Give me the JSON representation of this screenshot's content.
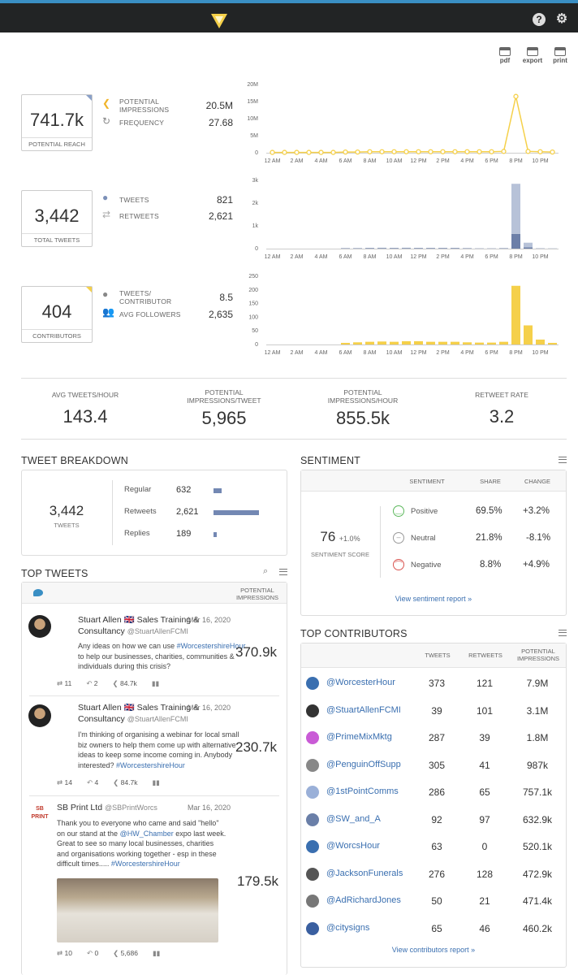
{
  "toolbar": {
    "pdf": "pdf",
    "export": "export",
    "print": "print"
  },
  "reach": {
    "value": "741.7k",
    "label": "POTENTIAL REACH",
    "m1_label": "POTENTIAL IMPRESSIONS",
    "m1_value": "20.5M",
    "m2_label": "FREQUENCY",
    "m2_value": "27.68"
  },
  "tweets": {
    "value": "3,442",
    "label": "TOTAL TWEETS",
    "m1_label": "TWEETS",
    "m1_value": "821",
    "m2_label": "RETWEETS",
    "m2_value": "2,621"
  },
  "contributors": {
    "value": "404",
    "label": "CONTRIBUTORS",
    "m1_label": "TWEETS/ CONTRIBUTOR",
    "m1_value": "8.5",
    "m2_label": "AVG FOLLOWERS",
    "m2_value": "2,635"
  },
  "chart_data": [
    {
      "type": "line",
      "x": [
        "12 AM",
        "1 AM",
        "2 AM",
        "3 AM",
        "4 AM",
        "5 AM",
        "6 AM",
        "7 AM",
        "8 AM",
        "9 AM",
        "10 AM",
        "11 AM",
        "12 PM",
        "1 PM",
        "2 PM",
        "3 PM",
        "4 PM",
        "5 PM",
        "6 PM",
        "7 PM",
        "8 PM",
        "9 PM",
        "10 PM",
        "11 PM"
      ],
      "values": [
        0.1,
        0.1,
        0.1,
        0.1,
        0.1,
        0.1,
        0.2,
        0.2,
        0.3,
        0.3,
        0.3,
        0.3,
        0.3,
        0.3,
        0.3,
        0.3,
        0.3,
        0.3,
        0.3,
        0.4,
        16.5,
        0.4,
        0.3,
        0.2
      ],
      "yticks": [
        "0",
        "5M",
        "10M",
        "15M",
        "20M"
      ],
      "ylim": [
        0,
        20
      ],
      "color": "#f5d04a"
    },
    {
      "type": "bar",
      "x": [
        "12 AM",
        "1 AM",
        "2 AM",
        "3 AM",
        "4 AM",
        "5 AM",
        "6 AM",
        "7 AM",
        "8 AM",
        "9 AM",
        "10 AM",
        "11 AM",
        "12 PM",
        "1 PM",
        "2 PM",
        "3 PM",
        "4 PM",
        "5 PM",
        "6 PM",
        "7 PM",
        "8 PM",
        "9 PM",
        "10 PM",
        "11 PM"
      ],
      "series": [
        {
          "name": "Tweets",
          "values": [
            0,
            0,
            0,
            0,
            0,
            0,
            15,
            15,
            20,
            25,
            20,
            25,
            20,
            20,
            20,
            20,
            15,
            10,
            10,
            15,
            650,
            60,
            10,
            5
          ],
          "color": "#6c7fa8"
        },
        {
          "name": "Retweets",
          "values": [
            0,
            0,
            0,
            0,
            0,
            0,
            10,
            10,
            15,
            15,
            15,
            15,
            15,
            15,
            15,
            15,
            10,
            5,
            5,
            10,
            2200,
            200,
            10,
            10
          ],
          "color": "#b7c2d8"
        }
      ],
      "yticks": [
        "0",
        "1k",
        "2k",
        "3k"
      ],
      "ylim": [
        0,
        3000
      ]
    },
    {
      "type": "bar",
      "x": [
        "12 AM",
        "1 AM",
        "2 AM",
        "3 AM",
        "4 AM",
        "5 AM",
        "6 AM",
        "7 AM",
        "8 AM",
        "9 AM",
        "10 AM",
        "11 AM",
        "12 PM",
        "1 PM",
        "2 PM",
        "3 PM",
        "4 PM",
        "5 PM",
        "6 PM",
        "7 PM",
        "8 PM",
        "9 PM",
        "10 PM",
        "11 PM"
      ],
      "values": [
        0,
        0,
        0,
        0,
        0,
        0,
        6,
        8,
        10,
        11,
        10,
        12,
        12,
        10,
        10,
        10,
        8,
        7,
        7,
        10,
        215,
        70,
        18,
        6
      ],
      "yticks": [
        "0",
        "50",
        "100",
        "150",
        "200",
        "250"
      ],
      "ylim": [
        0,
        250
      ],
      "color": "#f5d04a"
    }
  ],
  "xlabels": [
    "12 AM",
    "2 AM",
    "4 AM",
    "6 AM",
    "8 AM",
    "10 AM",
    "12 PM",
    "2 PM",
    "4 PM",
    "6 PM",
    "8 PM",
    "10 PM"
  ],
  "kpis": [
    {
      "label": "AVG TWEETS/HOUR",
      "value": "143.4"
    },
    {
      "label": "POTENTIAL IMPRESSIONS/TWEET",
      "value": "5,965"
    },
    {
      "label": "POTENTIAL IMPRESSIONS/HOUR",
      "value": "855.5k"
    },
    {
      "label": "RETWEET RATE",
      "value": "3.2"
    }
  ],
  "breakdown": {
    "title": "TWEET BREAKDOWN",
    "total": "3,442",
    "total_label": "TWEETS",
    "rows": [
      {
        "label": "Regular",
        "value": "632",
        "share": 0.18
      },
      {
        "label": "Retweets",
        "value": "2,621",
        "share": 1.0
      },
      {
        "label": "Replies",
        "value": "189",
        "share": 0.07
      }
    ]
  },
  "sentiment": {
    "title": "SENTIMENT",
    "score": "76",
    "change": "+1.0%",
    "score_label": "SENTIMENT SCORE",
    "headers": [
      "SENTIMENT",
      "SHARE",
      "CHANGE"
    ],
    "rows": [
      {
        "label": "Positive",
        "share": "69.5%",
        "change": "+3.2%",
        "color": "#5cb85c"
      },
      {
        "label": "Neutral",
        "share": "21.8%",
        "change": "-8.1%",
        "color": "#999999"
      },
      {
        "label": "Negative",
        "share": "8.8%",
        "change": "+4.9%",
        "color": "#d9534f"
      }
    ],
    "link": "View sentiment report »"
  },
  "top_tweets": {
    "title": "TOP TWEETS",
    "col": "POTENTIAL IMPRESSIONS",
    "items": [
      {
        "name": "Stuart Allen 🇬🇧 Sales Training & Consultancy",
        "handle": "@StuartAllenFCMI",
        "date": "Mar 16, 2020",
        "text_a": "Any ideas on how we can use ",
        "tag_a": "#WorcestershireHour",
        "text_b": " to help our businesses, charities, communities & individuals during this crisis?",
        "tag_b": "",
        "impressions": "370.9k",
        "retweets": "11",
        "replies": "2",
        "reach": "84.7k"
      },
      {
        "name": "Stuart Allen 🇬🇧 Sales Training & Consultancy",
        "handle": "@StuartAllenFCMI",
        "date": "Mar 16, 2020",
        "text_a": "I'm thinking of organising a webinar for local small biz owners to help them come up with alternative ideas to keep some income coming in. Anybody interested? ",
        "tag_a": "#WorcestershireHour",
        "text_b": "",
        "tag_b": "",
        "impressions": "230.7k",
        "retweets": "14",
        "replies": "4",
        "reach": "84.7k"
      },
      {
        "name": "SB Print Ltd",
        "handle": "@SBPrintWorcs",
        "date": "Mar 16, 2020",
        "text_a": "Thank you to everyone who came and said \"hello\" on our stand at the ",
        "tag_a": "@HW_Chamber",
        "text_b": " expo last week. Great to see so many local businesses, charities and organisations working together - esp in these difficult times..... ",
        "tag_b": "#WorcestershireHour",
        "impressions": "179.5k",
        "retweets": "10",
        "replies": "0",
        "reach": "5,686",
        "logo": "SB PRINT"
      }
    ]
  },
  "top_contributors": {
    "title": "TOP CONTRIBUTORS",
    "headers": [
      "TWEETS",
      "RETWEETS",
      "POTENTIAL IMPRESSIONS"
    ],
    "items": [
      {
        "handle": "@WorcesterHour",
        "tweets": "373",
        "retweets": "121",
        "impressions": "7.9M",
        "color": "#3a6fb0"
      },
      {
        "handle": "@StuartAllenFCMI",
        "tweets": "39",
        "retweets": "101",
        "impressions": "3.1M",
        "color": "#333333"
      },
      {
        "handle": "@PrimeMixMktg",
        "tweets": "287",
        "retweets": "39",
        "impressions": "1.8M",
        "color": "#c95bd6"
      },
      {
        "handle": "@PenguinOffSupp",
        "tweets": "305",
        "retweets": "41",
        "impressions": "987k",
        "color": "#888888"
      },
      {
        "handle": "@1stPointComms",
        "tweets": "286",
        "retweets": "65",
        "impressions": "757.1k",
        "color": "#9ab0d8"
      },
      {
        "handle": "@SW_and_A",
        "tweets": "92",
        "retweets": "97",
        "impressions": "632.9k",
        "color": "#6a7fa8"
      },
      {
        "handle": "@WorcsHour",
        "tweets": "63",
        "retweets": "0",
        "impressions": "520.1k",
        "color": "#3a6fb0"
      },
      {
        "handle": "@JacksonFunerals",
        "tweets": "276",
        "retweets": "128",
        "impressions": "472.9k",
        "color": "#555555"
      },
      {
        "handle": "@AdRichardJones",
        "tweets": "50",
        "retweets": "21",
        "impressions": "471.4k",
        "color": "#777777"
      },
      {
        "handle": "@citysigns",
        "tweets": "65",
        "retweets": "46",
        "impressions": "460.2k",
        "color": "#3a5fa0"
      }
    ],
    "link": "View contributors report »"
  }
}
